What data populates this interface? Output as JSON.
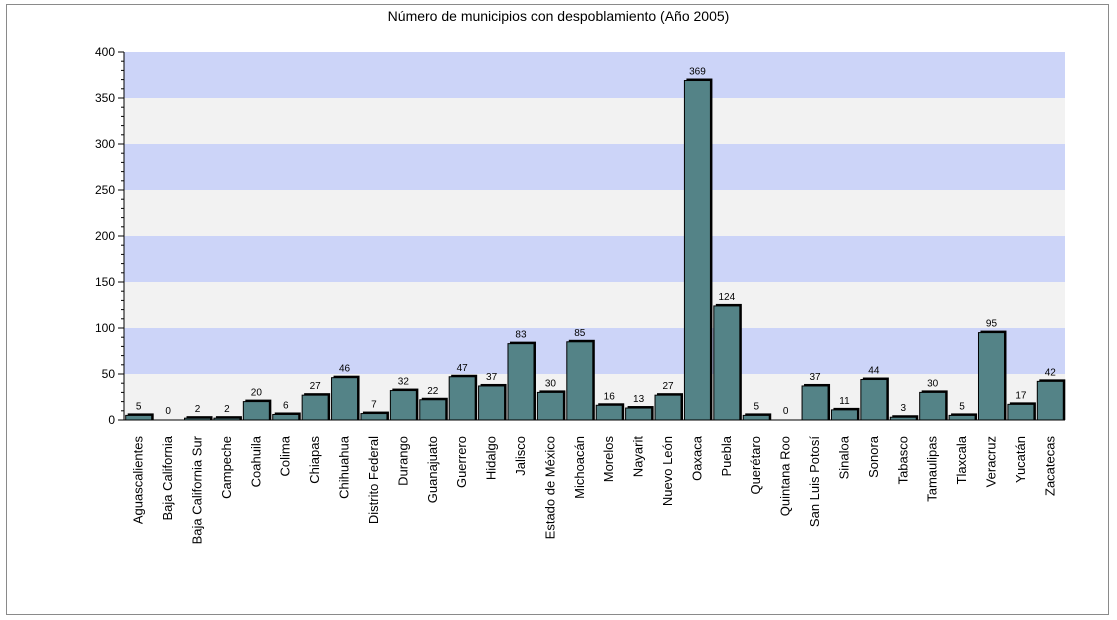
{
  "chart_data": {
    "type": "bar",
    "title": "Número de municipios con despoblamiento (Año 2005)",
    "xlabel": "",
    "ylabel": "",
    "ylim": [
      0,
      400
    ],
    "yticks": [
      0,
      50,
      100,
      150,
      200,
      250,
      300,
      350,
      400
    ],
    "categories": [
      "Aguascalientes",
      "Baja California",
      "Baja California Sur",
      "Campeche",
      "Coahuila",
      "Colima",
      "Chiapas",
      "Chihuahua",
      "Distrito Federal",
      "Durango",
      "Guanajuato",
      "Guerrero",
      "Hidalgo",
      "Jalisco",
      "Estado de México",
      "Michoacán",
      "Morelos",
      "Nayarit",
      "Nuevo León",
      "Oaxaca",
      "Puebla",
      "Querétaro",
      "Quintana Roo",
      "San Luis Potosí",
      "Sinaloa",
      "Sonora",
      "Tabasco",
      "Tamaulipas",
      "Tlaxcala",
      "Veracruz",
      "Yucatán",
      "Zacatecas"
    ],
    "values": [
      5,
      0,
      2,
      2,
      20,
      6,
      27,
      46,
      7,
      32,
      22,
      47,
      37,
      83,
      30,
      85,
      16,
      13,
      27,
      369,
      124,
      5,
      0,
      37,
      11,
      44,
      3,
      30,
      5,
      95,
      17,
      42
    ],
    "grid": "horizontal alternating bands",
    "colors": {
      "bar_fill": "#548387",
      "bar_edge": "#000000",
      "band_a": "#ccd4f8",
      "band_b": "#f2f2f2"
    }
  }
}
